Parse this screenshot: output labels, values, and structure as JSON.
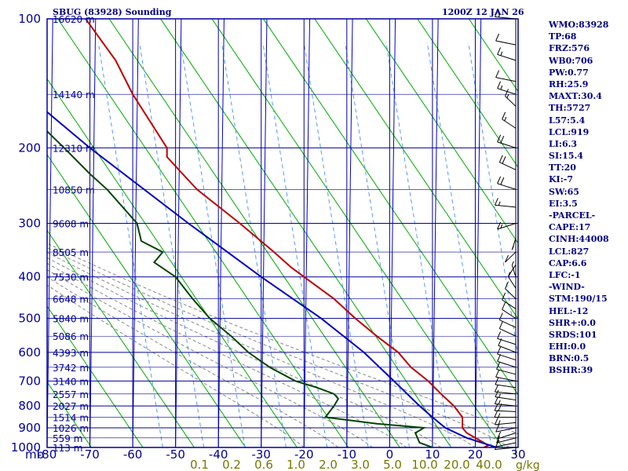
{
  "header": {
    "station": "SBUG (83928) Sounding",
    "time": "1200Z 12 JAN 26"
  },
  "stats": [
    "WMO:83928",
    "TP:68",
    "FRZ:576",
    "WB0:706",
    "PW:0.77",
    "RH:25.9",
    "MAXT:30.4",
    "TH:5727",
    "L57:5.4",
    "LCL:919",
    "LI:6.3",
    "SI:15.4",
    "TT:20",
    "KI:-7",
    "SW:65",
    "EI:3.5",
    "-PARCEL-",
    "CAPE:17",
    "CINH:44008",
    "LCL:827",
    "CAP:6.6",
    "LFC:-1",
    "-WIND-",
    "STM:190/15",
    "HEL:-12",
    "SHR+:0.0",
    "SRDS:101",
    "EHI:0.0",
    "BRN:0.5",
    "BSHR:39"
  ],
  "colors": {
    "frame": "#000099",
    "isotherm": "#0000cc",
    "dry_adiabat": "#00aa00",
    "moist_adiabat": "#888888",
    "mixing_ratio": "#5599ff",
    "temperature": "#bb0000",
    "dewpoint": "#004400",
    "parcel": "#0000bb",
    "wind": "#000000",
    "label": "#000099",
    "mixing_label": "#777700"
  },
  "chart_data": {
    "type": "skew-t sounding",
    "title": "SBUG (83928) Sounding",
    "x_unit": "C",
    "y_unit": "mb",
    "xlim": [
      -80,
      30
    ],
    "ylim": [
      1000,
      100
    ],
    "x_ticks": [
      -80,
      -70,
      -60,
      -50,
      -40,
      -30,
      -20,
      -10,
      0,
      10,
      20,
      30
    ],
    "x_tick_labels": [
      "-80",
      "-70",
      "-60",
      "-50",
      "-40",
      "-30",
      "-20",
      "-10",
      "0",
      "10",
      "20",
      "30"
    ],
    "y_ticks": [
      100,
      200,
      300,
      400,
      500,
      600,
      700,
      800,
      900,
      1000
    ],
    "y_tick_labels": [
      "100",
      "200",
      "300",
      "400",
      "500",
      "600",
      "700",
      "800",
      "900",
      "1000"
    ],
    "y_unit_label": "mb",
    "mixing_ratio_unit": "g/kg",
    "mixing_ratios": [
      0.1,
      0.2,
      0.6,
      1.0,
      2.0,
      3.0,
      5.0,
      10.0,
      20.0,
      40.0
    ],
    "mixing_ratio_labels": [
      "0.1",
      "0.2",
      "0.6",
      "1.0",
      "2.0",
      "3.0",
      "5.0",
      "10.0",
      "20.0",
      "40.0"
    ],
    "heights": [
      {
        "p": 100,
        "label": "16620 m"
      },
      {
        "p": 150,
        "label": "14140 m"
      },
      {
        "p": 200,
        "label": "12310 m"
      },
      {
        "p": 250,
        "label": "10850 m"
      },
      {
        "p": 300,
        "label": "9608 m"
      },
      {
        "p": 350,
        "label": "8505 m"
      },
      {
        "p": 400,
        "label": "7530 m"
      },
      {
        "p": 450,
        "label": "6648 m"
      },
      {
        "p": 500,
        "label": "5840 m"
      },
      {
        "p": 550,
        "label": "5086 m"
      },
      {
        "p": 600,
        "label": "4393 m"
      },
      {
        "p": 650,
        "label": "3742 m"
      },
      {
        "p": 700,
        "label": "3140 m"
      },
      {
        "p": 750,
        "label": "2557 m"
      },
      {
        "p": 800,
        "label": "2027 m"
      },
      {
        "p": 850,
        "label": "1514 m"
      },
      {
        "p": 900,
        "label": "1026 m"
      },
      {
        "p": 950,
        "label": "559 m"
      },
      {
        "p": 1000,
        "label": "113 m"
      }
    ],
    "series": [
      {
        "name": "Temperature",
        "points": [
          {
            "p": 1000,
            "t": 22
          },
          {
            "p": 990,
            "t": 23
          },
          {
            "p": 975,
            "t": 22
          },
          {
            "p": 925,
            "t": 18
          },
          {
            "p": 900,
            "t": 17
          },
          {
            "p": 850,
            "t": 17
          },
          {
            "p": 800,
            "t": 15
          },
          {
            "p": 750,
            "t": 12
          },
          {
            "p": 700,
            "t": 9
          },
          {
            "p": 650,
            "t": 5
          },
          {
            "p": 600,
            "t": 2
          },
          {
            "p": 550,
            "t": -3
          },
          {
            "p": 500,
            "t": -8
          },
          {
            "p": 450,
            "t": -13
          },
          {
            "p": 400,
            "t": -20
          },
          {
            "p": 380,
            "t": -23
          },
          {
            "p": 350,
            "t": -27
          },
          {
            "p": 300,
            "t": -35
          },
          {
            "p": 250,
            "t": -45
          },
          {
            "p": 210,
            "t": -52
          },
          {
            "p": 200,
            "t": -52
          },
          {
            "p": 150,
            "t": -60
          },
          {
            "p": 125,
            "t": -64
          },
          {
            "p": 100,
            "t": -71
          }
        ]
      },
      {
        "name": "Dewpoint",
        "points": [
          {
            "p": 1000,
            "t": 10
          },
          {
            "p": 975,
            "t": 7
          },
          {
            "p": 925,
            "t": 6
          },
          {
            "p": 900,
            "t": 8
          },
          {
            "p": 880,
            "t": -3
          },
          {
            "p": 850,
            "t": -15
          },
          {
            "p": 800,
            "t": -13
          },
          {
            "p": 770,
            "t": -12
          },
          {
            "p": 750,
            "t": -13
          },
          {
            "p": 725,
            "t": -17
          },
          {
            "p": 700,
            "t": -22
          },
          {
            "p": 650,
            "t": -28
          },
          {
            "p": 600,
            "t": -33
          },
          {
            "p": 550,
            "t": -37
          },
          {
            "p": 500,
            "t": -42
          },
          {
            "p": 450,
            "t": -46
          },
          {
            "p": 400,
            "t": -50
          },
          {
            "p": 370,
            "t": -55
          },
          {
            "p": 350,
            "t": -53
          },
          {
            "p": 330,
            "t": -58
          },
          {
            "p": 300,
            "t": -59
          },
          {
            "p": 250,
            "t": -66
          },
          {
            "p": 230,
            "t": -70
          },
          {
            "p": 200,
            "t": -76
          },
          {
            "p": 175,
            "t": -82
          }
        ]
      },
      {
        "name": "Parcel",
        "points": [
          {
            "p": 1000,
            "t": 25
          },
          {
            "p": 950,
            "t": 18
          },
          {
            "p": 900,
            "t": 13
          },
          {
            "p": 850,
            "t": 10
          },
          {
            "p": 800,
            "t": 7
          },
          {
            "p": 700,
            "t": 1
          },
          {
            "p": 600,
            "t": -6
          },
          {
            "p": 500,
            "t": -16
          },
          {
            "p": 400,
            "t": -30
          },
          {
            "p": 300,
            "t": -47
          },
          {
            "p": 200,
            "t": -70
          },
          {
            "p": 165,
            "t": -80
          }
        ]
      }
    ],
    "wind_barbs": [
      {
        "p": 1000,
        "dir": 260,
        "spd": 5
      },
      {
        "p": 975,
        "dir": 250,
        "spd": 10
      },
      {
        "p": 950,
        "dir": 245,
        "spd": 10
      },
      {
        "p": 925,
        "dir": 240,
        "spd": 10
      },
      {
        "p": 900,
        "dir": 250,
        "spd": 10
      },
      {
        "p": 875,
        "dir": 260,
        "spd": 15
      },
      {
        "p": 850,
        "dir": 270,
        "spd": 15
      },
      {
        "p": 825,
        "dir": 275,
        "spd": 20
      },
      {
        "p": 800,
        "dir": 280,
        "spd": 15
      },
      {
        "p": 775,
        "dir": 285,
        "spd": 15
      },
      {
        "p": 750,
        "dir": 280,
        "spd": 10
      },
      {
        "p": 725,
        "dir": 285,
        "spd": 10
      },
      {
        "p": 700,
        "dir": 290,
        "spd": 10
      },
      {
        "p": 675,
        "dir": 295,
        "spd": 10
      },
      {
        "p": 650,
        "dir": 300,
        "spd": 10
      },
      {
        "p": 625,
        "dir": 300,
        "spd": 10
      },
      {
        "p": 600,
        "dir": 305,
        "spd": 10
      },
      {
        "p": 575,
        "dir": 300,
        "spd": 10
      },
      {
        "p": 550,
        "dir": 310,
        "spd": 10
      },
      {
        "p": 525,
        "dir": 310,
        "spd": 10
      },
      {
        "p": 500,
        "dir": 320,
        "spd": 10
      },
      {
        "p": 475,
        "dir": 320,
        "spd": 10
      },
      {
        "p": 450,
        "dir": 330,
        "spd": 10
      },
      {
        "p": 425,
        "dir": 340,
        "spd": 5
      },
      {
        "p": 400,
        "dir": 350,
        "spd": 5
      },
      {
        "p": 375,
        "dir": 200,
        "spd": 5
      },
      {
        "p": 350,
        "dir": 210,
        "spd": 10
      },
      {
        "p": 325,
        "dir": 190,
        "spd": 5
      },
      {
        "p": 300,
        "dir": 240,
        "spd": 15
      },
      {
        "p": 275,
        "dir": 280,
        "spd": 15
      },
      {
        "p": 250,
        "dir": 300,
        "spd": 20
      },
      {
        "p": 225,
        "dir": 310,
        "spd": 20
      },
      {
        "p": 200,
        "dir": 300,
        "spd": 20
      },
      {
        "p": 180,
        "dir": 320,
        "spd": 15
      },
      {
        "p": 160,
        "dir": 330,
        "spd": 15
      },
      {
        "p": 150,
        "dir": 300,
        "spd": 15
      },
      {
        "p": 140,
        "dir": 290,
        "spd": 10
      },
      {
        "p": 125,
        "dir": 300,
        "spd": 15
      },
      {
        "p": 115,
        "dir": 290,
        "spd": 10
      },
      {
        "p": 100,
        "dir": 280,
        "spd": 15
      }
    ]
  }
}
